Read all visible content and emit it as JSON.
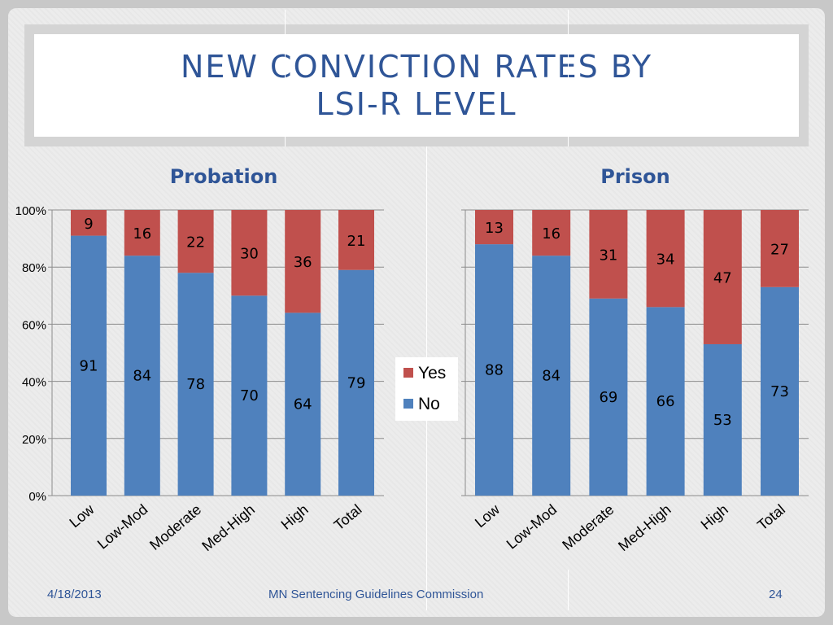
{
  "slide": {
    "title_line1": "NEW CONVICTION RATES BY",
    "title_line2": "LSI-R LEVEL",
    "footer_date": "4/18/2013",
    "footer_center": "MN Sentencing Guidelines Commission",
    "footer_page": "24"
  },
  "colors": {
    "no": "#4f81bd",
    "yes": "#c0504d",
    "title": "#2f5597",
    "grid": "#8c8c8c"
  },
  "chart_data": [
    {
      "type": "bar",
      "stacked": true,
      "title": "Probation",
      "categories": [
        "Low",
        "Low-Mod",
        "Moderate",
        "Med-High",
        "High",
        "Total"
      ],
      "ylim": [
        0,
        100
      ],
      "yticks": [
        "0%",
        "20%",
        "40%",
        "60%",
        "80%",
        "100%"
      ],
      "grid": true,
      "series": [
        {
          "name": "No",
          "values": [
            91,
            84,
            78,
            70,
            64,
            79
          ]
        },
        {
          "name": "Yes",
          "values": [
            9,
            16,
            22,
            30,
            36,
            21
          ]
        }
      ]
    },
    {
      "type": "bar",
      "stacked": true,
      "title": "Prison",
      "categories": [
        "Low",
        "Low-Mod",
        "Moderate",
        "Med-High",
        "High",
        "Total"
      ],
      "ylim": [
        0,
        100
      ],
      "grid": true,
      "series": [
        {
          "name": "No",
          "values": [
            88,
            84,
            69,
            66,
            53,
            73
          ]
        },
        {
          "name": "Yes",
          "values": [
            13,
            16,
            31,
            34,
            47,
            27
          ]
        }
      ]
    }
  ],
  "legend": {
    "position": "center",
    "items": [
      "Yes",
      "No"
    ]
  }
}
